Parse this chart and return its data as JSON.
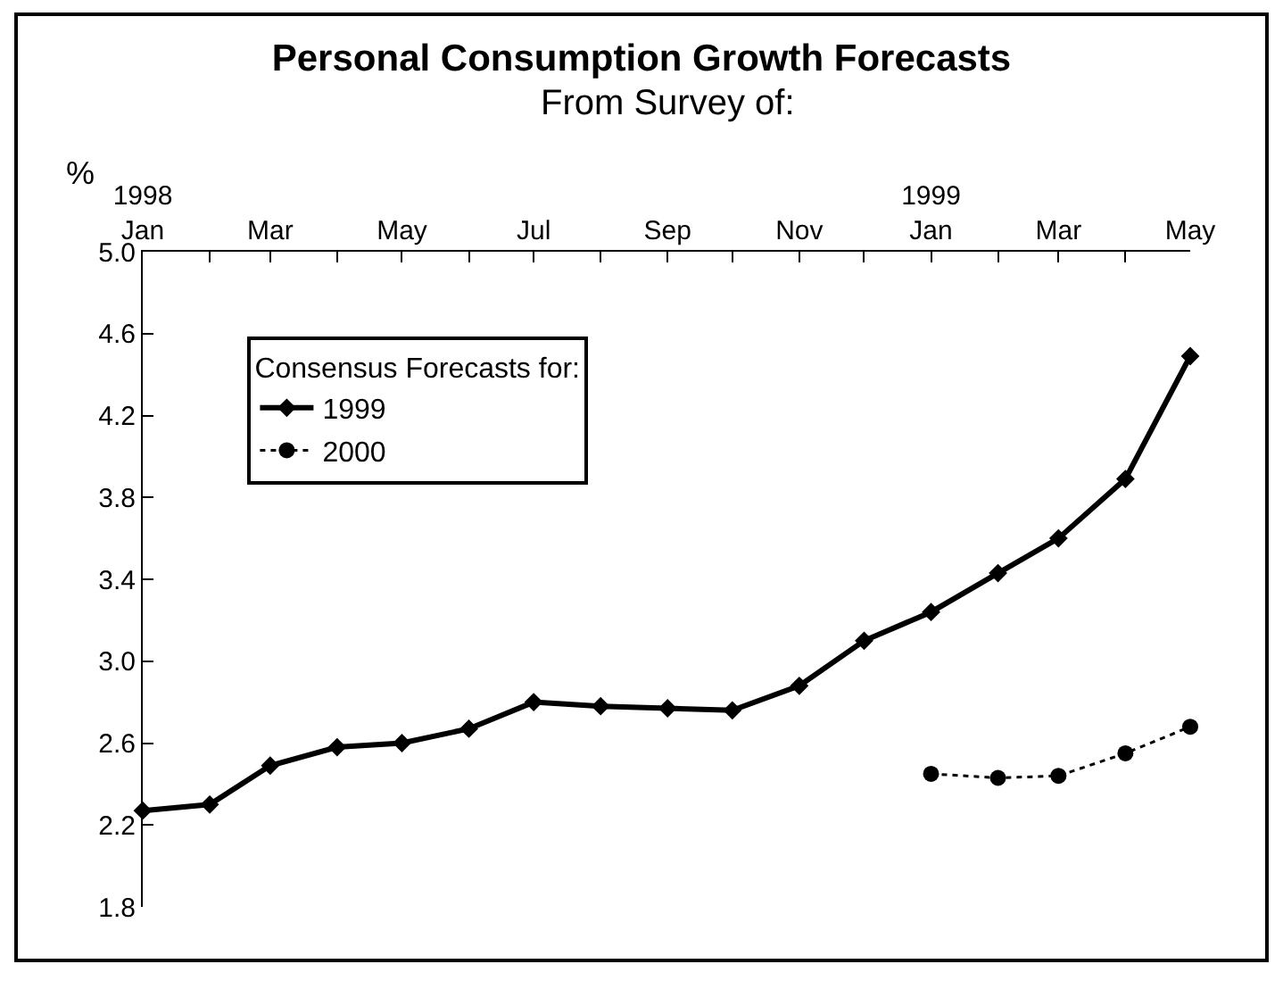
{
  "chart_data": {
    "type": "line",
    "title": "Personal Consumption Growth Forecasts",
    "subtitle": "From Survey of:",
    "ylabel": "%",
    "legend_title": "Consensus Forecasts for:",
    "x": [
      "1998-01",
      "1998-02",
      "1998-03",
      "1998-04",
      "1998-05",
      "1998-06",
      "1998-07",
      "1998-08",
      "1998-09",
      "1998-10",
      "1998-11",
      "1998-12",
      "1999-01",
      "1999-02",
      "1999-03",
      "1999-04",
      "1999-05"
    ],
    "series": [
      {
        "name": "1999",
        "color": "#000000",
        "marker": "diamond",
        "line_style": "solid",
        "values": [
          2.27,
          2.3,
          2.49,
          2.58,
          2.6,
          2.67,
          2.8,
          2.78,
          2.77,
          2.76,
          2.88,
          3.1,
          3.24,
          3.43,
          3.6,
          3.89,
          4.49
        ]
      },
      {
        "name": "2000",
        "color": "#000000",
        "marker": "circle",
        "line_style": "dotted",
        "values": [
          null,
          null,
          null,
          null,
          null,
          null,
          null,
          null,
          null,
          null,
          null,
          null,
          2.45,
          2.43,
          2.44,
          2.55,
          2.68
        ]
      }
    ],
    "xlim": [
      "1998-01",
      "1999-05"
    ],
    "xticks": [
      {
        "value": "1998-01",
        "label": "1998\nJan"
      },
      {
        "value": "1998-02",
        "label": null
      },
      {
        "value": "1998-03",
        "label": "Mar"
      },
      {
        "value": "1998-04",
        "label": null
      },
      {
        "value": "1998-05",
        "label": "May"
      },
      {
        "value": "1998-06",
        "label": null
      },
      {
        "value": "1998-07",
        "label": "Jul"
      },
      {
        "value": "1998-08",
        "label": null
      },
      {
        "value": "1998-09",
        "label": "Sep"
      },
      {
        "value": "1998-10",
        "label": null
      },
      {
        "value": "1998-11",
        "label": "Nov"
      },
      {
        "value": "1998-12",
        "label": null
      },
      {
        "value": "1999-01",
        "label": "1999\nJan"
      },
      {
        "value": "1999-02",
        "label": null
      },
      {
        "value": "1999-03",
        "label": "Mar"
      },
      {
        "value": "1999-04",
        "label": null
      },
      {
        "value": "1999-05",
        "label": "May"
      }
    ],
    "ylim": [
      1.8,
      5.0
    ],
    "yticks": [
      {
        "value": 1.8,
        "label": "1.8"
      },
      {
        "value": 2.2,
        "label": "2.2"
      },
      {
        "value": 2.6,
        "label": "2.6"
      },
      {
        "value": 3.0,
        "label": "3.0"
      },
      {
        "value": 3.4,
        "label": "3.4"
      },
      {
        "value": 3.8,
        "label": "3.8"
      },
      {
        "value": 4.2,
        "label": "4.2"
      },
      {
        "value": 4.6,
        "label": "4.6"
      },
      {
        "value": 5.0,
        "label": "5.0"
      }
    ],
    "legend": "top left"
  }
}
